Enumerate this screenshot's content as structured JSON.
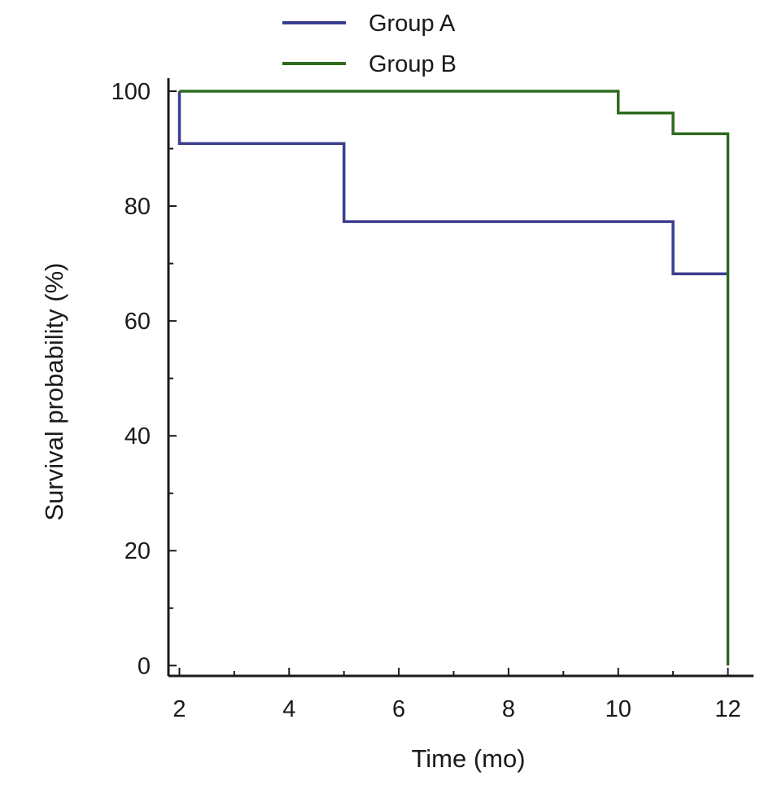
{
  "chart_data": {
    "type": "line",
    "step": true,
    "xlabel": "Time (mo)",
    "ylabel": "Survival probability (%)",
    "xlim": [
      1.8,
      12.2
    ],
    "ylim": [
      -1.8,
      100
    ],
    "xticks": [
      2,
      4,
      6,
      8,
      10,
      12
    ],
    "yticks": [
      0,
      20,
      40,
      60,
      80,
      100
    ],
    "xtick_labels": [
      "2",
      "4",
      "6",
      "8",
      "10",
      "12"
    ],
    "ytick_labels": [
      "0",
      "20",
      "40",
      "60",
      "80",
      "100"
    ],
    "minor_xticks": [
      3,
      5,
      7,
      9,
      11
    ],
    "minor_yticks": [
      10,
      30,
      50,
      70,
      90
    ],
    "grid": false,
    "legend": {
      "position": "top",
      "entries": [
        "Group A",
        "Group B"
      ]
    },
    "series": [
      {
        "name": "Group A",
        "color": "#3b3d8f",
        "x": [
          2,
          2,
          5,
          5,
          11,
          11,
          12
        ],
        "y": [
          100,
          90.9,
          90.9,
          77.3,
          77.3,
          68.2,
          68.2
        ]
      },
      {
        "name": "Group B",
        "color": "#2e6b1f",
        "x": [
          2,
          10,
          10,
          11,
          11,
          12,
          12
        ],
        "y": [
          100,
          100,
          96.2,
          96.2,
          92.6,
          92.6,
          0
        ]
      }
    ]
  }
}
